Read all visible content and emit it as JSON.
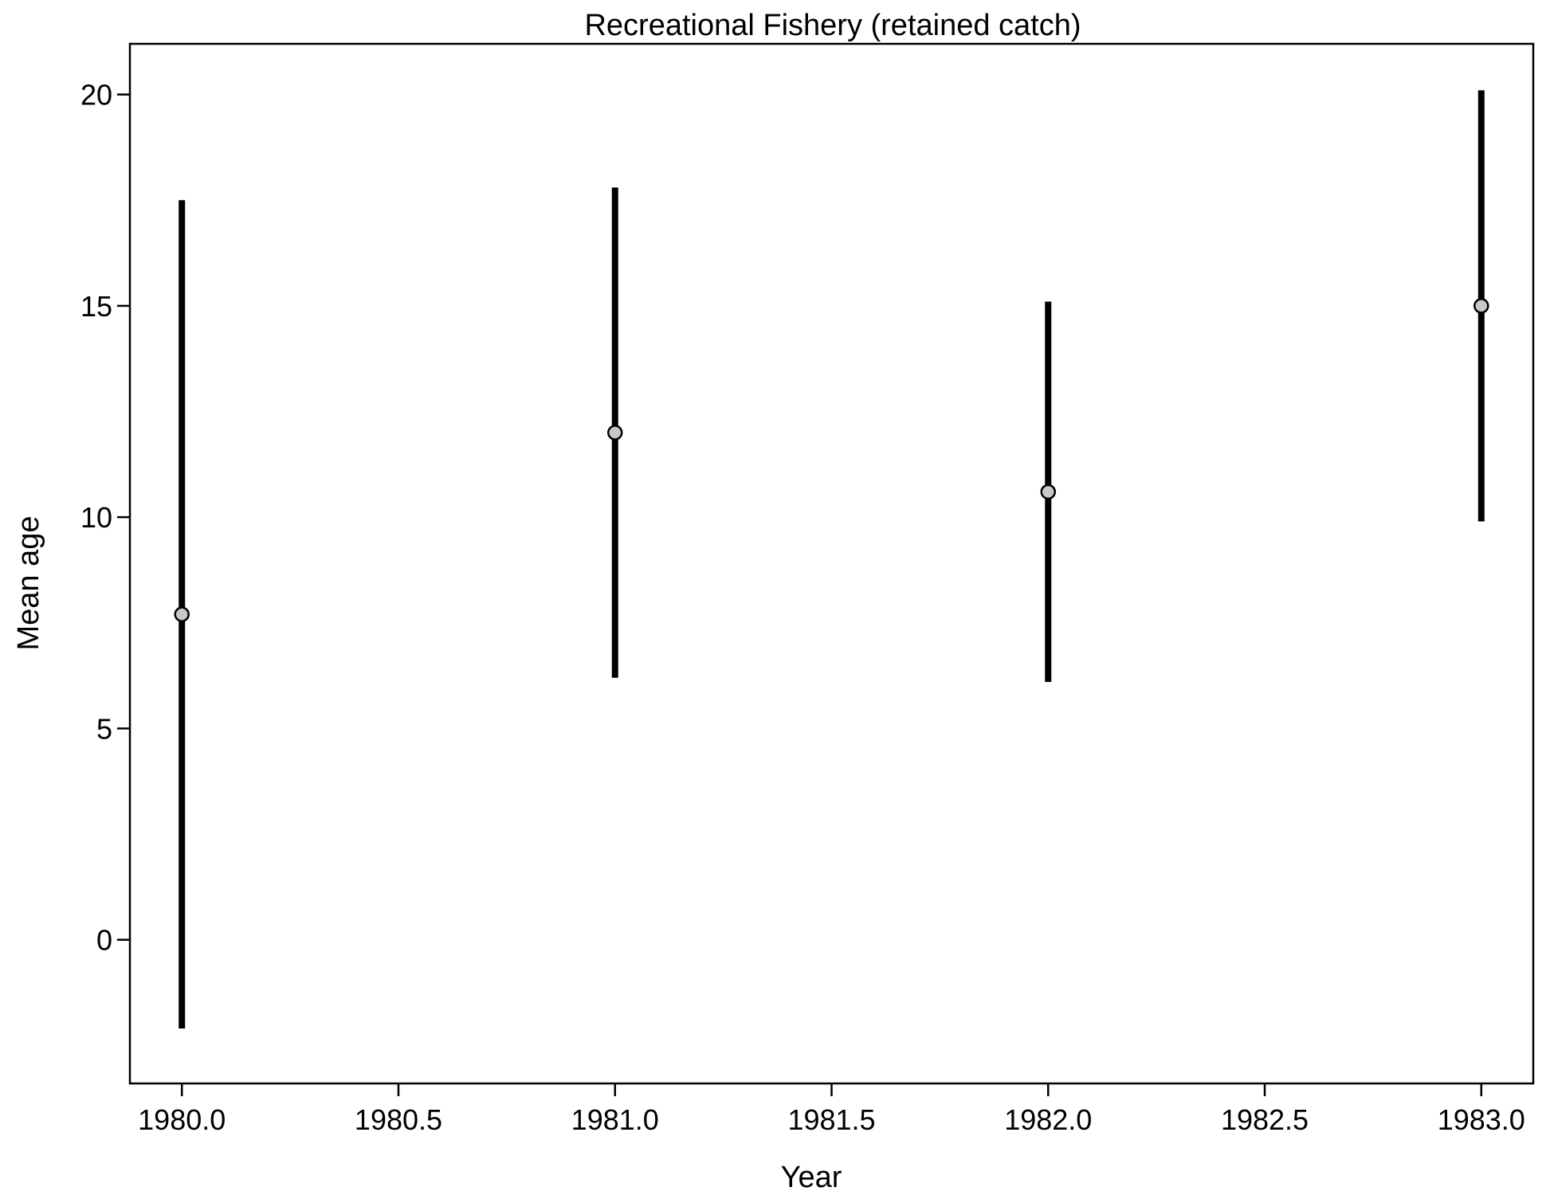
{
  "chart_data": {
    "type": "scatter",
    "title": "Recreational Fishery (retained catch)",
    "xlabel": "Year",
    "ylabel": "Mean age",
    "xlim": [
      1979.88,
      1983.12
    ],
    "ylim": [
      -3.4,
      21.2
    ],
    "xticks": [
      1980.0,
      1980.5,
      1981.0,
      1981.5,
      1982.0,
      1982.5,
      1983.0
    ],
    "xtick_labels": [
      "1980.0",
      "1980.5",
      "1981.0",
      "1981.5",
      "1982.0",
      "1982.5",
      "1983.0"
    ],
    "yticks": [
      0,
      5,
      10,
      15,
      20
    ],
    "ytick_labels": [
      "0",
      "5",
      "10",
      "15",
      "20"
    ],
    "grid": false,
    "points": [
      {
        "x": 1980.0,
        "y": 7.7,
        "lower": -2.1,
        "upper": 17.5
      },
      {
        "x": 1981.0,
        "y": 12.0,
        "lower": 6.2,
        "upper": 17.8
      },
      {
        "x": 1982.0,
        "y": 10.6,
        "lower": 6.1,
        "upper": 15.1
      },
      {
        "x": 1983.0,
        "y": 15.0,
        "lower": 9.9,
        "upper": 20.1
      }
    ],
    "colors": {
      "bar": "#000000",
      "point_fill": "#c8c8c8",
      "point_stroke": "#000000"
    }
  }
}
